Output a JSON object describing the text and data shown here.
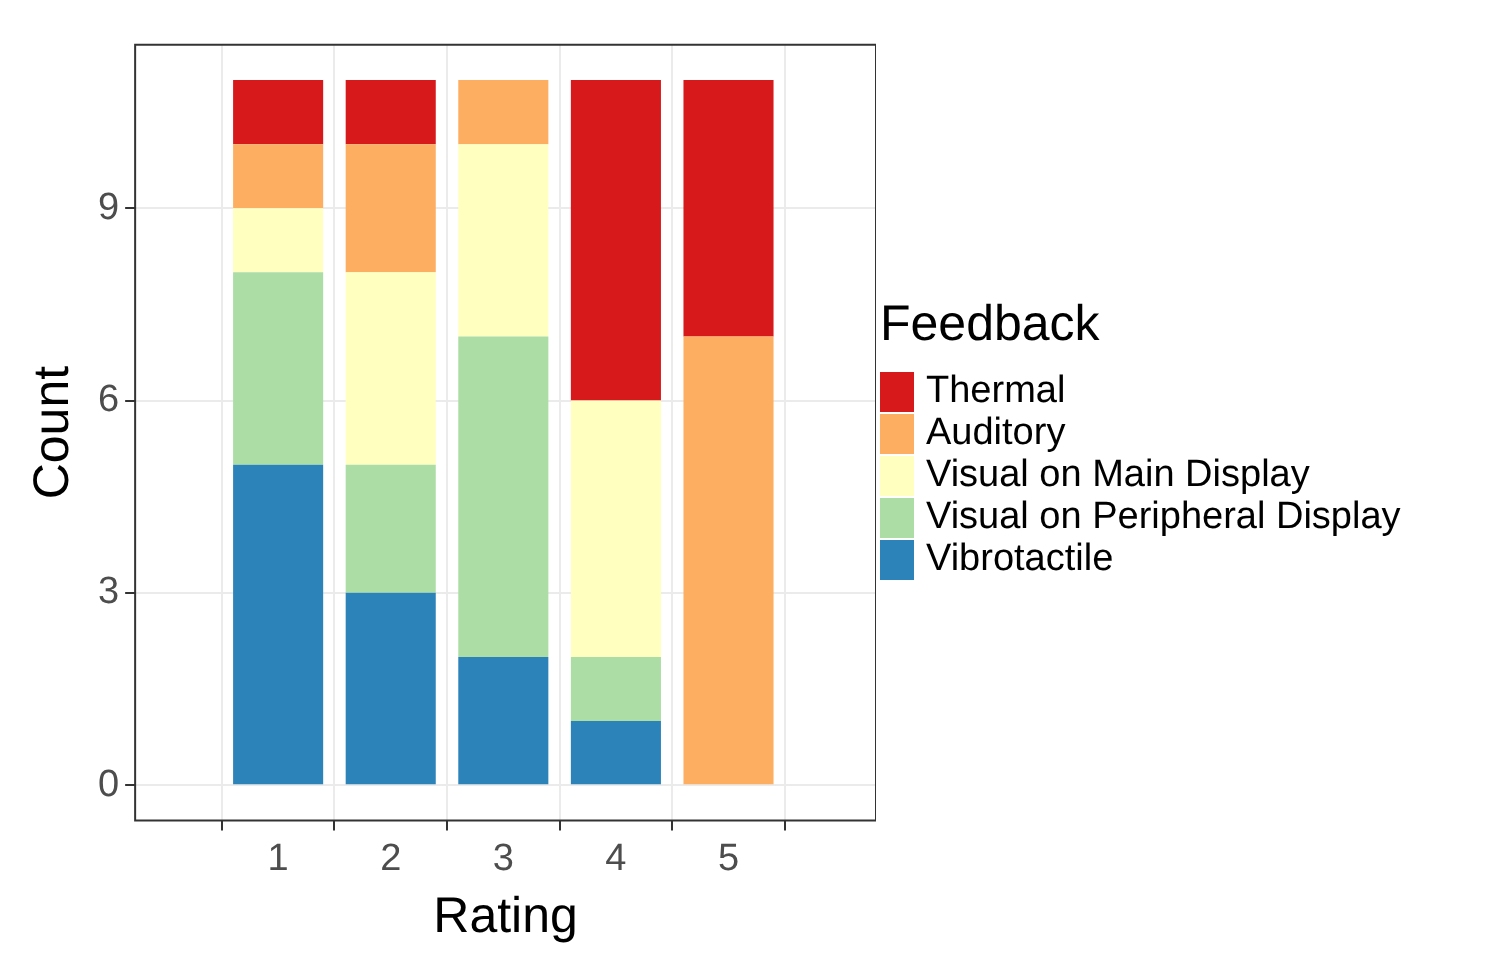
{
  "chart_data": {
    "type": "bar",
    "stacked": true,
    "xlabel": "Rating",
    "ylabel": "Count",
    "legend_title": "Feedback",
    "legend": "right",
    "grid": true,
    "x": [
      1,
      2,
      3,
      4,
      5
    ],
    "xlim": [
      -0.27,
      6.31
    ],
    "xticks": [
      1,
      2,
      3,
      4,
      5
    ],
    "ylim": [
      -0.55,
      11.55
    ],
    "yticks": [
      0,
      3,
      6,
      9
    ],
    "series": [
      {
        "name": "Vibrotactile",
        "color": "#2b83ba",
        "values": [
          5,
          3,
          2,
          1,
          0
        ]
      },
      {
        "name": "Visual on Peripheral Display",
        "color": "#abdda4",
        "values": [
          3,
          2,
          5,
          1,
          0
        ]
      },
      {
        "name": "Visual on Main Display",
        "color": "#ffffbf",
        "values": [
          1,
          3,
          3,
          4,
          0
        ]
      },
      {
        "name": "Auditory",
        "color": "#fdae61",
        "values": [
          1,
          2,
          1,
          0,
          7
        ]
      },
      {
        "name": "Thermal",
        "color": "#d7191c",
        "values": [
          1,
          1,
          0,
          5,
          4
        ]
      }
    ]
  }
}
